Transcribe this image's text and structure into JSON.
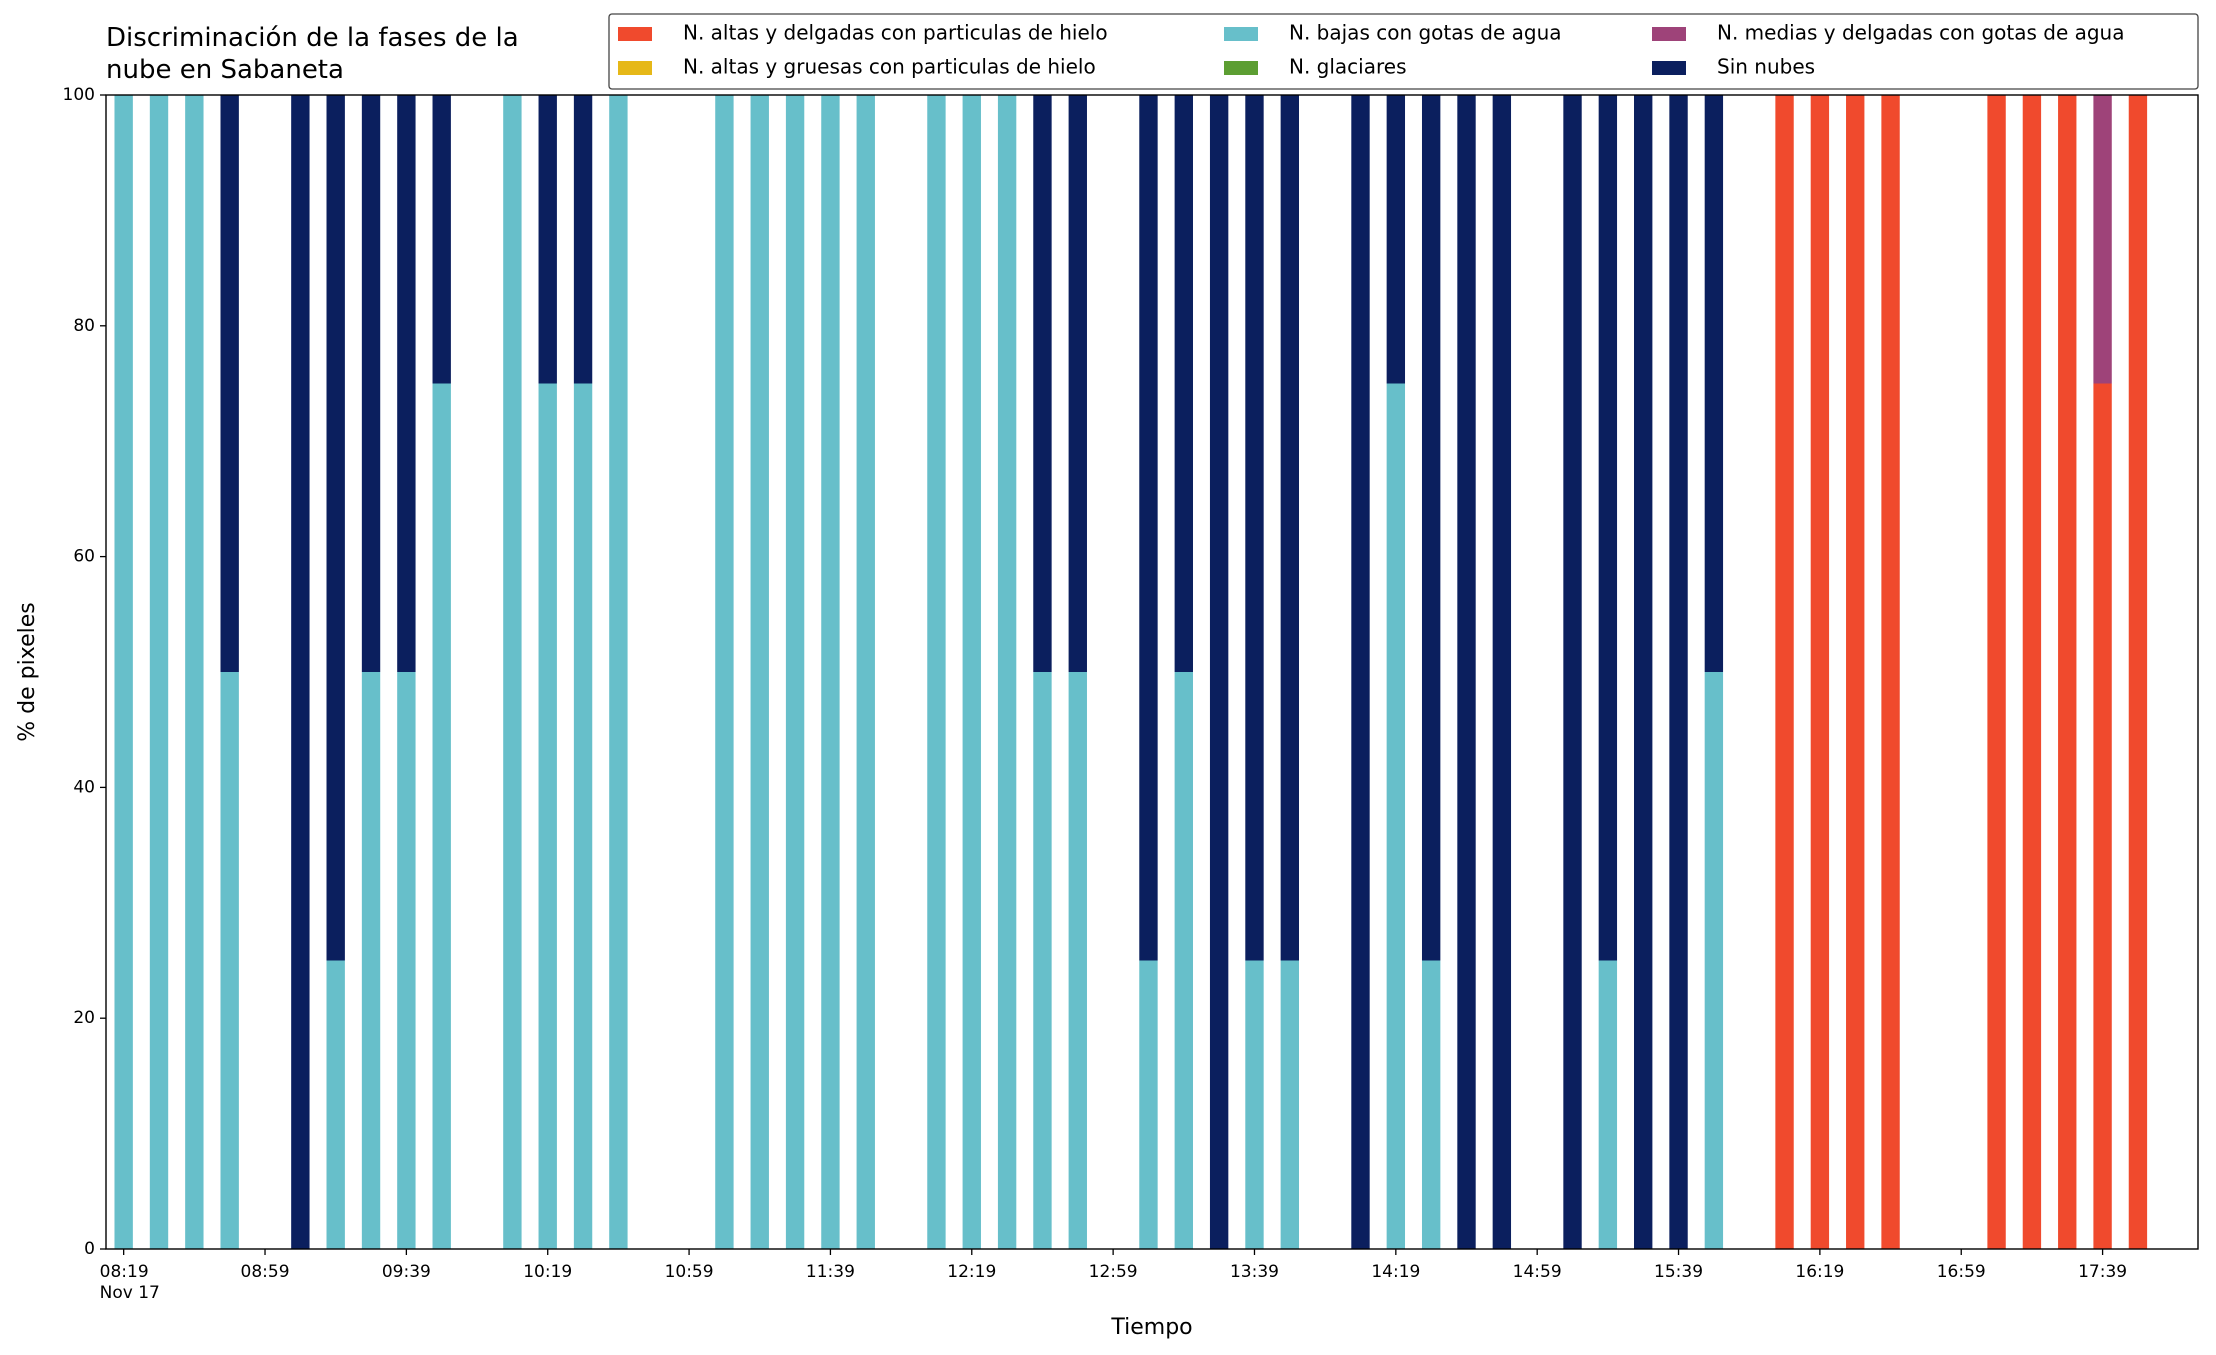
{
  "chart_data": {
    "type": "stacked_bar",
    "title": "Discriminación de la fases de la\nnube en Sabaneta",
    "xlabel": "Tiempo",
    "ylabel": "% de pixeles",
    "x": [
      "08:19",
      "08:29",
      "08:39",
      "08:49",
      "08:59",
      "09:09",
      "09:19",
      "09:29",
      "09:39",
      "09:49",
      "09:59",
      "10:09",
      "10:19",
      "10:29",
      "10:39",
      "10:49",
      "10:59",
      "11:09",
      "11:19",
      "11:29",
      "11:39",
      "11:49",
      "11:59",
      "12:09",
      "12:19",
      "12:29",
      "12:39",
      "12:49",
      "12:59",
      "13:09",
      "13:19",
      "13:29",
      "13:39",
      "13:49",
      "13:59",
      "14:09",
      "14:19",
      "14:29",
      "14:39",
      "14:49",
      "14:59",
      "15:09",
      "15:19",
      "15:29",
      "15:39",
      "15:49",
      "15:59",
      "16:09",
      "16:19",
      "16:29",
      "16:39",
      "16:49",
      "16:59",
      "17:09",
      "17:19",
      "17:29",
      "17:39",
      "17:49"
    ],
    "xlim": [
      "08:14",
      "18:06"
    ],
    "xticks": [
      {
        "value": "08:19",
        "label": "08:19\nNov 17"
      },
      "08:59",
      "09:39",
      "10:19",
      "10:59",
      "11:39",
      "12:19",
      "12:59",
      "13:39",
      "14:19",
      "14:59",
      "15:39",
      "16:19",
      "16:59",
      "17:39"
    ],
    "ylim": [
      0,
      100
    ],
    "yticks": [
      0,
      20,
      40,
      60,
      80,
      100
    ],
    "series": [
      {
        "name": "N. altas y delgadas con particulas de hielo",
        "color": "#f04a2d",
        "values": [
          0,
          0,
          0,
          0,
          null,
          0,
          0,
          0,
          0,
          0,
          null,
          0,
          0,
          0,
          0,
          null,
          null,
          0,
          0,
          0,
          0,
          0,
          null,
          0,
          0,
          0,
          0,
          0,
          null,
          0,
          0,
          0,
          0,
          0,
          null,
          0,
          0,
          0,
          0,
          0,
          null,
          0,
          0,
          0,
          0,
          0,
          null,
          100,
          100,
          100,
          100,
          null,
          null,
          100,
          100,
          100,
          75,
          100
        ]
      },
      {
        "name": "N. altas y gruesas con particulas de hielo",
        "color": "#e6b818",
        "values": [
          0,
          0,
          0,
          0,
          null,
          0,
          0,
          0,
          0,
          0,
          null,
          0,
          0,
          0,
          0,
          null,
          null,
          0,
          0,
          0,
          0,
          0,
          null,
          0,
          0,
          0,
          0,
          0,
          null,
          0,
          0,
          0,
          0,
          0,
          null,
          0,
          0,
          0,
          0,
          0,
          null,
          0,
          0,
          0,
          0,
          0,
          null,
          0,
          0,
          0,
          0,
          null,
          null,
          0,
          0,
          0,
          0,
          0
        ]
      },
      {
        "name": "N. bajas con gotas de agua",
        "color": "#67bfca",
        "values": [
          100,
          100,
          100,
          50,
          null,
          0,
          25,
          50,
          50,
          75,
          null,
          100,
          75,
          75,
          100,
          null,
          null,
          100,
          100,
          100,
          100,
          100,
          null,
          100,
          100,
          100,
          50,
          50,
          null,
          25,
          50,
          0,
          25,
          25,
          null,
          0,
          75,
          25,
          0,
          0,
          null,
          0,
          25,
          0,
          0,
          50,
          null,
          0,
          0,
          0,
          0,
          null,
          null,
          0,
          0,
          0,
          0,
          0
        ]
      },
      {
        "name": "N. glaciares",
        "color": "#5c9e32",
        "values": [
          0,
          0,
          0,
          0,
          null,
          0,
          0,
          0,
          0,
          0,
          null,
          0,
          0,
          0,
          0,
          null,
          null,
          0,
          0,
          0,
          0,
          0,
          null,
          0,
          0,
          0,
          0,
          0,
          null,
          0,
          0,
          0,
          0,
          0,
          null,
          0,
          0,
          0,
          0,
          0,
          null,
          0,
          0,
          0,
          0,
          0,
          null,
          0,
          0,
          0,
          0,
          null,
          null,
          0,
          0,
          0,
          0,
          0
        ]
      },
      {
        "name": "N. medias y delgadas con gotas de agua",
        "color": "#9e4379",
        "values": [
          0,
          0,
          0,
          0,
          null,
          0,
          0,
          0,
          0,
          0,
          null,
          0,
          0,
          0,
          0,
          null,
          null,
          0,
          0,
          0,
          0,
          0,
          null,
          0,
          0,
          0,
          0,
          0,
          null,
          0,
          0,
          0,
          0,
          0,
          null,
          0,
          0,
          0,
          0,
          0,
          null,
          0,
          0,
          0,
          0,
          0,
          null,
          0,
          0,
          0,
          0,
          null,
          null,
          0,
          0,
          0,
          25,
          0
        ]
      },
      {
        "name": "Sin nubes",
        "color": "#0b1f5e",
        "values": [
          0,
          0,
          0,
          50,
          null,
          100,
          75,
          50,
          50,
          25,
          null,
          0,
          25,
          25,
          0,
          null,
          null,
          0,
          0,
          0,
          0,
          0,
          null,
          0,
          0,
          0,
          50,
          50,
          null,
          75,
          50,
          100,
          75,
          75,
          null,
          100,
          25,
          75,
          100,
          100,
          null,
          100,
          75,
          100,
          100,
          50,
          null,
          0,
          0,
          0,
          0,
          null,
          null,
          0,
          0,
          0,
          0,
          0
        ]
      }
    ]
  }
}
